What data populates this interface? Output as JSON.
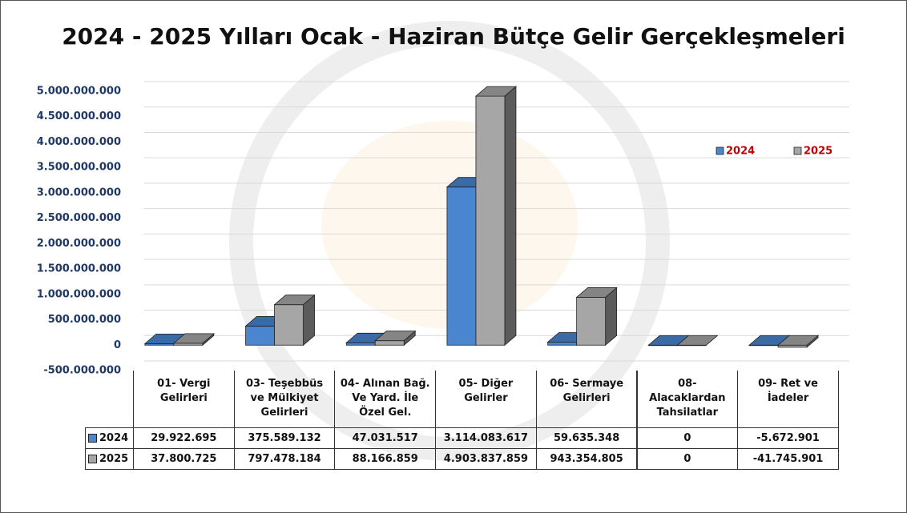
{
  "chart_data": {
    "type": "bar3d",
    "title": "2024 - 2025 Yılları Ocak - Haziran Bütçe Gelir Gerçekleşmeleri",
    "categories": [
      "01- Vergi Gelirleri",
      "03- Teşebbüs ve Mülkiyet Gelirleri",
      "04- Alınan Bağ. Ve Yard. İle Özel Gel.",
      "05- Diğer Gelirler",
      "06- Sermaye Gelirleri",
      "08- Alacaklardan Tahsilatlar",
      "09- Ret ve İadeler"
    ],
    "series": [
      {
        "name": "2024",
        "color": "#4a86cf",
        "values": [
          29922695,
          375589132,
          47031517,
          3114083617,
          59635348,
          0,
          -5672901
        ],
        "value_labels": [
          "29.922.695",
          "375.589.132",
          "47.031.517",
          "3.114.083.617",
          "59.635.348",
          "0",
          "-5.672.901"
        ]
      },
      {
        "name": "2025",
        "color": "#a6a6a6",
        "values": [
          37800725,
          797478184,
          88166859,
          4903837859,
          943354805,
          0,
          -41745901
        ],
        "value_labels": [
          "37.800.725",
          "797.478.184",
          "88.166.859",
          "4.903.837.859",
          "943.354.805",
          "0",
          "-41.745.901"
        ]
      }
    ],
    "ylim": [
      -500000000,
      5000000000
    ],
    "yticks": [
      {
        "value": -500000000,
        "label": "-500.000.000"
      },
      0,
      {
        "value": 500000000,
        "label": "500.000.000"
      },
      {
        "value": 1000000000,
        "label": "1.000.000.000"
      },
      {
        "value": 1500000000,
        "label": "1.500.000.000"
      },
      {
        "value": 2000000000,
        "label": "2.000.000.000"
      },
      {
        "value": 2500000000,
        "label": "2.500.000.000"
      },
      {
        "value": 3000000000,
        "label": "3.000.000.000"
      },
      {
        "value": 3500000000,
        "label": "3.500.000.000"
      },
      {
        "value": 4000000000,
        "label": "4.000.000.000"
      },
      {
        "value": 4500000000,
        "label": "4.500.000.000"
      },
      {
        "value": 5000000000,
        "label": "5.000.000.000"
      }
    ],
    "grid": true,
    "legend": "right"
  }
}
